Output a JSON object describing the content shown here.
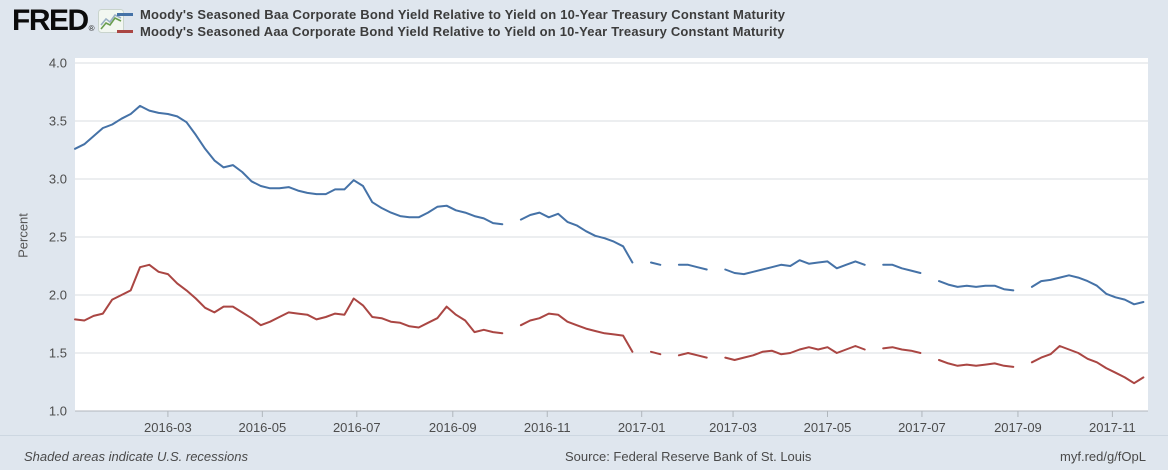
{
  "header": {
    "logo_text": "FRED",
    "logo_registered": "®"
  },
  "footer": {
    "note": "Shaded areas indicate U.S. recessions",
    "source": "Source: Federal Reserve Bank of St. Louis",
    "link": "myf.red/g/fOpL"
  },
  "colors": {
    "background": "#dfe6ee",
    "plot_background": "#ffffff",
    "gridline": "#d8dde2",
    "axis": "#b0b6bc",
    "tick_text": "#4d4d4d",
    "baa_line": "#4572a7",
    "aaa_line": "#aa4643"
  },
  "chart_data": {
    "type": "line",
    "title": "",
    "xlabel": "",
    "ylabel": "Percent",
    "ylim": [
      1.0,
      4.0
    ],
    "y_ticks": [
      "4.0",
      "3.5",
      "3.0",
      "2.5",
      "2.0",
      "1.5",
      "1.0"
    ],
    "x_ticks": [
      "2016-03",
      "2016-05",
      "2016-07",
      "2016-09",
      "2016-11",
      "2017-01",
      "2017-03",
      "2017-05",
      "2017-07",
      "2017-09",
      "2017-11"
    ],
    "x_start": "2016-01-01",
    "x_end": "2017-11-24",
    "x_step_days": 6,
    "grid": "horizontal",
    "legend_position": "top",
    "series": [
      {
        "name": "Moody's Seasoned Baa Corporate Bond Yield Relative to Yield on 10-Year Treasury Constant Maturity",
        "color": "#4572a7",
        "values": [
          3.26,
          3.3,
          3.37,
          3.44,
          3.47,
          3.52,
          3.56,
          3.63,
          3.59,
          3.57,
          3.56,
          3.54,
          3.49,
          3.38,
          3.26,
          3.16,
          3.1,
          3.12,
          3.06,
          2.98,
          2.94,
          2.92,
          2.92,
          2.93,
          2.9,
          2.88,
          2.87,
          2.87,
          2.91,
          2.91,
          2.99,
          2.94,
          2.8,
          2.75,
          2.71,
          2.68,
          2.67,
          2.67,
          2.71,
          2.76,
          2.77,
          2.73,
          2.71,
          2.68,
          2.66,
          2.62,
          2.61,
          null,
          2.65,
          2.69,
          2.71,
          2.67,
          2.7,
          2.63,
          2.6,
          2.55,
          2.51,
          2.49,
          2.46,
          2.42,
          2.28,
          null,
          2.28,
          2.26,
          null,
          2.26,
          2.26,
          2.24,
          2.22,
          null,
          2.22,
          2.19,
          2.18,
          2.2,
          2.22,
          2.24,
          2.26,
          2.25,
          2.3,
          2.27,
          2.28,
          2.29,
          2.23,
          2.26,
          2.29,
          2.26,
          null,
          2.26,
          2.26,
          2.23,
          2.21,
          2.19,
          null,
          2.12,
          2.09,
          2.07,
          2.08,
          2.07,
          2.08,
          2.08,
          2.05,
          2.04,
          null,
          2.07,
          2.12,
          2.13,
          2.15,
          2.17,
          2.15,
          2.12,
          2.08,
          2.01,
          1.98,
          1.96,
          1.92,
          1.94
        ]
      },
      {
        "name": "Moody's Seasoned Aaa Corporate Bond Yield Relative to Yield on 10-Year Treasury Constant Maturity",
        "color": "#aa4643",
        "values": [
          1.79,
          1.78,
          1.82,
          1.84,
          1.96,
          2.0,
          2.04,
          2.24,
          2.26,
          2.2,
          2.18,
          2.1,
          2.04,
          1.97,
          1.89,
          1.85,
          1.9,
          1.9,
          1.85,
          1.8,
          1.74,
          1.77,
          1.81,
          1.85,
          1.84,
          1.83,
          1.79,
          1.81,
          1.84,
          1.83,
          1.97,
          1.91,
          1.81,
          1.8,
          1.77,
          1.76,
          1.73,
          1.72,
          1.76,
          1.8,
          1.9,
          1.83,
          1.78,
          1.68,
          1.7,
          1.68,
          1.67,
          null,
          1.74,
          1.78,
          1.8,
          1.84,
          1.83,
          1.77,
          1.74,
          1.71,
          1.69,
          1.67,
          1.66,
          1.65,
          1.51,
          null,
          1.51,
          1.49,
          null,
          1.48,
          1.5,
          1.48,
          1.46,
          null,
          1.46,
          1.44,
          1.46,
          1.48,
          1.51,
          1.52,
          1.49,
          1.5,
          1.53,
          1.55,
          1.53,
          1.55,
          1.5,
          1.53,
          1.56,
          1.53,
          null,
          1.54,
          1.55,
          1.53,
          1.52,
          1.5,
          null,
          1.44,
          1.41,
          1.39,
          1.4,
          1.39,
          1.4,
          1.41,
          1.39,
          1.38,
          null,
          1.42,
          1.46,
          1.49,
          1.56,
          1.53,
          1.5,
          1.45,
          1.42,
          1.37,
          1.33,
          1.29,
          1.24,
          1.29
        ]
      }
    ]
  }
}
